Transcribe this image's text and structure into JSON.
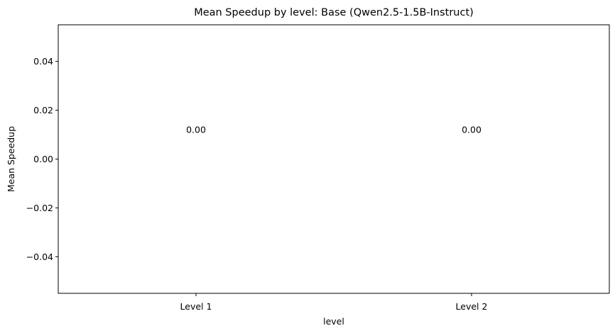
{
  "chart_data": {
    "type": "bar",
    "title": "Mean Speedup by level: Base (Qwen2.5-1.5B-Instruct)",
    "xlabel": "level",
    "ylabel": "Mean Speedup",
    "categories": [
      "Level 1",
      "Level 2"
    ],
    "values": [
      0.0,
      0.0
    ],
    "data_labels": [
      "0.00",
      "0.00"
    ],
    "ylim": [
      -0.055,
      0.055
    ],
    "yticks": [
      -0.04,
      -0.02,
      0.0,
      0.02,
      0.04
    ],
    "ytick_labels": [
      "−0.04",
      "−0.02",
      "0.00",
      "0.02",
      "0.04"
    ],
    "grid": false,
    "bar_color": "#1f77b4"
  }
}
